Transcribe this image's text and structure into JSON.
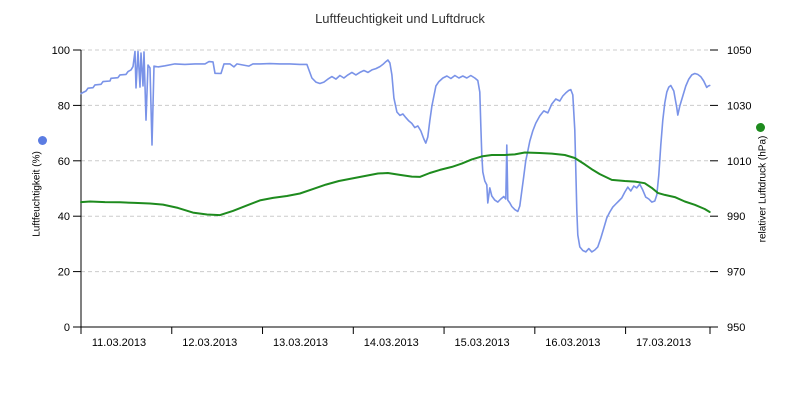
{
  "title": "Luftfeuchtigkeit und Luftdruck",
  "colors": {
    "humidity_line": "#7a93e8",
    "humidity_marker": "#5b7ce2",
    "pressure_line": "#1e8b1e",
    "pressure_marker": "#1e8b1e",
    "grid": "#cccccc",
    "axis": "#000000",
    "title_text": "#333333",
    "tick_text": "#000000"
  },
  "chart_data": {
    "type": "line",
    "title": "Luftfeuchtigkeit und Luftdruck",
    "grid": {
      "horizontal_dashed": [
        20,
        40,
        60,
        80,
        100
      ],
      "vertical": false
    },
    "x_axis": {
      "range_days": [
        11.0,
        17.93
      ],
      "tick_days": [
        11,
        12,
        13,
        14,
        15,
        16,
        17
      ],
      "tick_labels": [
        "11.03.2013",
        "12.03.2013",
        "13.03.2013",
        "14.03.2013",
        "15.03.2013",
        "16.03.2013",
        "17.03.2013"
      ]
    },
    "left_axis": {
      "label": "Luftfeuchtigkeit (%)",
      "range": [
        0,
        100
      ],
      "ticks": [
        0,
        20,
        40,
        60,
        80,
        100
      ]
    },
    "right_axis": {
      "label": "relativer Luftdruck (hPa)",
      "range": [
        950,
        1050
      ],
      "ticks": [
        950,
        970,
        990,
        1010,
        1030,
        1050
      ]
    },
    "legend": {
      "position": "outside-axis-titles",
      "entries": [
        "Luftfeuchtigkeit (%)",
        "relativer Luftdruck (hPa)"
      ]
    },
    "series": [
      {
        "name": "Luftfeuchtigkeit (%)",
        "axis": "left",
        "unit": "%",
        "color": "#7a93e8",
        "marker_color": "#5b7ce2",
        "stroke_width": 1.6,
        "data_name": "humidity-line",
        "points": [
          [
            11.0,
            84.3
          ],
          [
            11.055,
            85.2
          ],
          [
            11.077,
            86.2
          ],
          [
            11.132,
            86.4
          ],
          [
            11.154,
            87.4
          ],
          [
            11.22,
            87.6
          ],
          [
            11.242,
            88.6
          ],
          [
            11.319,
            88.8
          ],
          [
            11.33,
            89.8
          ],
          [
            11.407,
            90.0
          ],
          [
            11.43,
            91.0
          ],
          [
            11.496,
            91.2
          ],
          [
            11.518,
            92.2
          ],
          [
            11.551,
            92.8
          ],
          [
            11.573,
            94.0
          ],
          [
            11.595,
            99.5
          ],
          [
            11.606,
            86.3
          ],
          [
            11.628,
            99.5
          ],
          [
            11.65,
            86.6
          ],
          [
            11.661,
            98.9
          ],
          [
            11.683,
            87.0
          ],
          [
            11.694,
            99.3
          ],
          [
            11.716,
            74.7
          ],
          [
            11.738,
            94.6
          ],
          [
            11.76,
            93.5
          ],
          [
            11.782,
            65.7
          ],
          [
            11.804,
            94.2
          ],
          [
            11.848,
            93.9
          ],
          [
            11.925,
            94.3
          ],
          [
            12.035,
            95.0
          ],
          [
            12.145,
            94.8
          ],
          [
            12.256,
            95.0
          ],
          [
            12.366,
            95.0
          ],
          [
            12.41,
            95.8
          ],
          [
            12.454,
            95.7
          ],
          [
            12.476,
            91.6
          ],
          [
            12.542,
            91.5
          ],
          [
            12.575,
            95.0
          ],
          [
            12.64,
            95.0
          ],
          [
            12.685,
            93.9
          ],
          [
            12.718,
            95.0
          ],
          [
            12.85,
            94.2
          ],
          [
            12.894,
            95.0
          ],
          [
            12.971,
            95.0
          ],
          [
            13.081,
            95.1
          ],
          [
            13.192,
            95.0
          ],
          [
            13.302,
            95.0
          ],
          [
            13.412,
            94.8
          ],
          [
            13.489,
            94.8
          ],
          [
            13.511,
            92.8
          ],
          [
            13.544,
            89.9
          ],
          [
            13.588,
            88.4
          ],
          [
            13.632,
            87.9
          ],
          [
            13.676,
            88.4
          ],
          [
            13.72,
            89.5
          ],
          [
            13.764,
            90.4
          ],
          [
            13.808,
            89.5
          ],
          [
            13.852,
            90.8
          ],
          [
            13.896,
            89.9
          ],
          [
            13.941,
            91.0
          ],
          [
            13.985,
            91.9
          ],
          [
            14.029,
            91.0
          ],
          [
            14.073,
            91.9
          ],
          [
            14.117,
            92.6
          ],
          [
            14.161,
            91.9
          ],
          [
            14.205,
            92.8
          ],
          [
            14.249,
            93.3
          ],
          [
            14.293,
            94.0
          ],
          [
            14.326,
            94.8
          ],
          [
            14.359,
            95.8
          ],
          [
            14.381,
            96.4
          ],
          [
            14.403,
            95.3
          ],
          [
            14.425,
            91.0
          ],
          [
            14.447,
            82.7
          ],
          [
            14.48,
            77.6
          ],
          [
            14.513,
            76.4
          ],
          [
            14.546,
            76.9
          ],
          [
            14.579,
            75.6
          ],
          [
            14.612,
            74.4
          ],
          [
            14.645,
            73.5
          ],
          [
            14.678,
            72.0
          ],
          [
            14.711,
            72.6
          ],
          [
            14.744,
            70.8
          ],
          [
            14.777,
            67.9
          ],
          [
            14.799,
            66.4
          ],
          [
            14.821,
            68.6
          ],
          [
            14.843,
            74.4
          ],
          [
            14.866,
            79.8
          ],
          [
            14.888,
            83.4
          ],
          [
            14.91,
            87.0
          ],
          [
            14.943,
            88.6
          ],
          [
            14.987,
            89.9
          ],
          [
            15.031,
            90.6
          ],
          [
            15.075,
            89.7
          ],
          [
            15.119,
            90.8
          ],
          [
            15.163,
            89.9
          ],
          [
            15.207,
            90.6
          ],
          [
            15.251,
            89.9
          ],
          [
            15.295,
            90.8
          ],
          [
            15.339,
            89.9
          ],
          [
            15.372,
            89.0
          ],
          [
            15.394,
            84.8
          ],
          [
            15.405,
            72.9
          ],
          [
            15.416,
            62.1
          ],
          [
            15.427,
            56.0
          ],
          [
            15.449,
            52.7
          ],
          [
            15.471,
            51.3
          ],
          [
            15.482,
            44.8
          ],
          [
            15.504,
            50.2
          ],
          [
            15.526,
            47.3
          ],
          [
            15.559,
            45.8
          ],
          [
            15.592,
            45.1
          ],
          [
            15.625,
            46.2
          ],
          [
            15.658,
            47.1
          ],
          [
            15.68,
            46.2
          ],
          [
            15.691,
            65.7
          ],
          [
            15.702,
            45.8
          ],
          [
            15.724,
            44.8
          ],
          [
            15.746,
            43.5
          ],
          [
            15.779,
            42.4
          ],
          [
            15.812,
            41.7
          ],
          [
            15.834,
            43.7
          ],
          [
            15.856,
            49.1
          ],
          [
            15.878,
            54.5
          ],
          [
            15.9,
            59.9
          ],
          [
            15.923,
            63.5
          ],
          [
            15.945,
            67.1
          ],
          [
            15.978,
            70.8
          ],
          [
            16.011,
            73.6
          ],
          [
            16.055,
            76.2
          ],
          [
            16.099,
            78.0
          ],
          [
            16.143,
            77.3
          ],
          [
            16.187,
            80.5
          ],
          [
            16.231,
            82.3
          ],
          [
            16.275,
            81.6
          ],
          [
            16.308,
            83.4
          ],
          [
            16.341,
            84.5
          ],
          [
            16.374,
            85.4
          ],
          [
            16.396,
            85.7
          ],
          [
            16.418,
            83.8
          ],
          [
            16.44,
            71.1
          ],
          [
            16.451,
            56.7
          ],
          [
            16.462,
            42.2
          ],
          [
            16.473,
            33.2
          ],
          [
            16.495,
            28.9
          ],
          [
            16.529,
            27.6
          ],
          [
            16.562,
            27.1
          ],
          [
            16.595,
            28.3
          ],
          [
            16.628,
            27.1
          ],
          [
            16.661,
            27.8
          ],
          [
            16.694,
            28.9
          ],
          [
            16.727,
            32.1
          ],
          [
            16.76,
            35.7
          ],
          [
            16.793,
            39.4
          ],
          [
            16.826,
            41.5
          ],
          [
            16.859,
            43.3
          ],
          [
            16.892,
            44.4
          ],
          [
            16.925,
            45.5
          ],
          [
            16.958,
            46.6
          ],
          [
            16.991,
            48.7
          ],
          [
            17.024,
            50.5
          ],
          [
            17.057,
            49.1
          ],
          [
            17.09,
            50.9
          ],
          [
            17.123,
            50.2
          ],
          [
            17.156,
            51.6
          ],
          [
            17.189,
            49.5
          ],
          [
            17.222,
            46.9
          ],
          [
            17.256,
            46.2
          ],
          [
            17.289,
            45.1
          ],
          [
            17.322,
            45.5
          ],
          [
            17.344,
            47.7
          ],
          [
            17.366,
            54.9
          ],
          [
            17.388,
            65.7
          ],
          [
            17.41,
            74.7
          ],
          [
            17.432,
            80.9
          ],
          [
            17.454,
            84.8
          ],
          [
            17.476,
            86.6
          ],
          [
            17.498,
            87.2
          ],
          [
            17.531,
            85.2
          ],
          [
            17.564,
            79.1
          ],
          [
            17.575,
            76.5
          ],
          [
            17.597,
            79.8
          ],
          [
            17.63,
            83.4
          ],
          [
            17.663,
            87.0
          ],
          [
            17.696,
            89.5
          ],
          [
            17.729,
            91.0
          ],
          [
            17.762,
            91.5
          ],
          [
            17.795,
            91.2
          ],
          [
            17.828,
            90.4
          ],
          [
            17.861,
            88.8
          ],
          [
            17.894,
            86.5
          ],
          [
            17.911,
            87.0
          ],
          [
            17.927,
            87.2
          ]
        ]
      },
      {
        "name": "relativer Luftdruck (hPa)",
        "axis": "right",
        "unit": "hPa",
        "color": "#1e8b1e",
        "marker_color": "#1e8b1e",
        "stroke_width": 2,
        "data_name": "pressure-line",
        "points": [
          [
            11.0,
            995.1
          ],
          [
            11.099,
            995.3
          ],
          [
            11.264,
            995.1
          ],
          [
            11.43,
            995.0
          ],
          [
            11.595,
            994.8
          ],
          [
            11.76,
            994.6
          ],
          [
            11.903,
            994.2
          ],
          [
            12.068,
            993.0
          ],
          [
            12.233,
            991.3
          ],
          [
            12.388,
            990.6
          ],
          [
            12.531,
            990.4
          ],
          [
            12.674,
            991.9
          ],
          [
            12.828,
            993.9
          ],
          [
            12.971,
            995.7
          ],
          [
            13.115,
            996.6
          ],
          [
            13.269,
            997.3
          ],
          [
            13.412,
            998.2
          ],
          [
            13.555,
            999.8
          ],
          [
            13.698,
            1001.4
          ],
          [
            13.841,
            1002.7
          ],
          [
            13.985,
            1003.6
          ],
          [
            14.128,
            1004.5
          ],
          [
            14.271,
            1005.4
          ],
          [
            14.381,
            1005.6
          ],
          [
            14.513,
            1004.9
          ],
          [
            14.645,
            1004.3
          ],
          [
            14.733,
            1004.2
          ],
          [
            14.843,
            1005.6
          ],
          [
            14.954,
            1006.7
          ],
          [
            15.086,
            1007.8
          ],
          [
            15.196,
            1009.0
          ],
          [
            15.306,
            1010.5
          ],
          [
            15.416,
            1011.6
          ],
          [
            15.526,
            1012.1
          ],
          [
            15.669,
            1012.1
          ],
          [
            15.779,
            1012.3
          ],
          [
            15.89,
            1013.0
          ],
          [
            16.055,
            1012.8
          ],
          [
            16.187,
            1012.6
          ],
          [
            16.33,
            1012.1
          ],
          [
            16.44,
            1011.0
          ],
          [
            16.551,
            1008.7
          ],
          [
            16.639,
            1006.7
          ],
          [
            16.716,
            1005.2
          ],
          [
            16.848,
            1003.1
          ],
          [
            16.991,
            1002.7
          ],
          [
            17.101,
            1002.5
          ],
          [
            17.211,
            1001.9
          ],
          [
            17.289,
            1000.2
          ],
          [
            17.355,
            998.4
          ],
          [
            17.432,
            997.7
          ],
          [
            17.542,
            996.9
          ],
          [
            17.652,
            995.3
          ],
          [
            17.762,
            994.1
          ],
          [
            17.872,
            992.6
          ],
          [
            17.927,
            991.5
          ]
        ]
      }
    ]
  }
}
